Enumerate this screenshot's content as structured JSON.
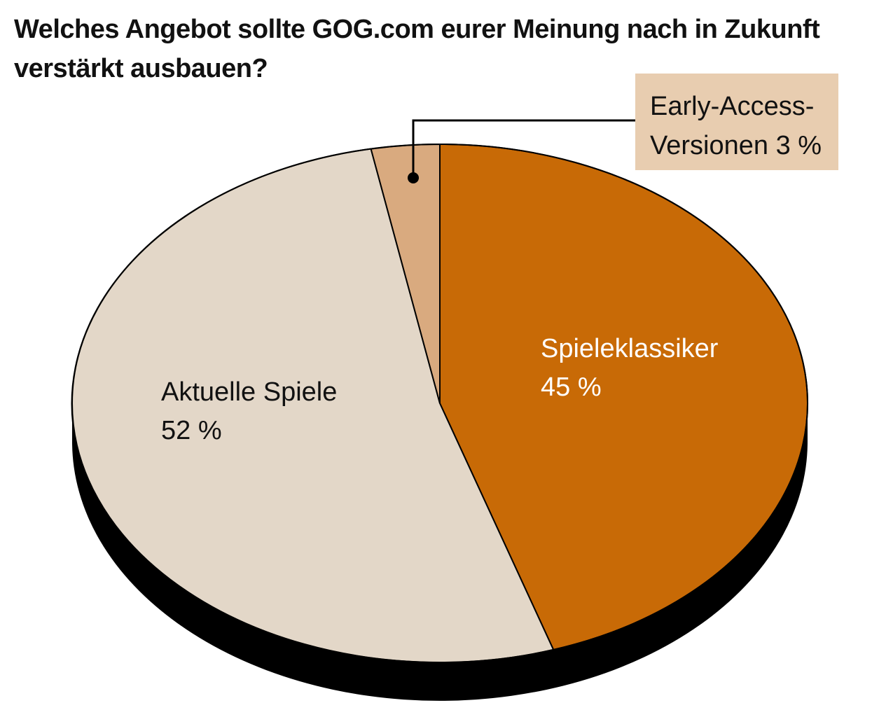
{
  "chart_data": {
    "type": "pie",
    "title": "Welches Angebot sollte GOG.com eurer Meinung nach in Zukunft verstärkt ausbauen?",
    "slices": [
      {
        "label": "Spieleklassiker",
        "value": 45,
        "value_label": "45 %",
        "color": "#c86a06",
        "text_color": "#ffffff"
      },
      {
        "label": "Aktuelle Spiele",
        "value": 52,
        "value_label": "52 %",
        "color": "#e3d7c8",
        "text_color": "#111111"
      },
      {
        "label": "Early-Access-Versionen",
        "value": 3,
        "value_label": "3 %",
        "color": "#d9aa7f",
        "text_color": "#111111"
      }
    ],
    "callout": {
      "line1": "Early-Access-",
      "line2": "Versionen 3 %",
      "background": "#e8cdb0"
    },
    "unit": "%",
    "legend": "none",
    "style": "3d-tilted-pie"
  }
}
